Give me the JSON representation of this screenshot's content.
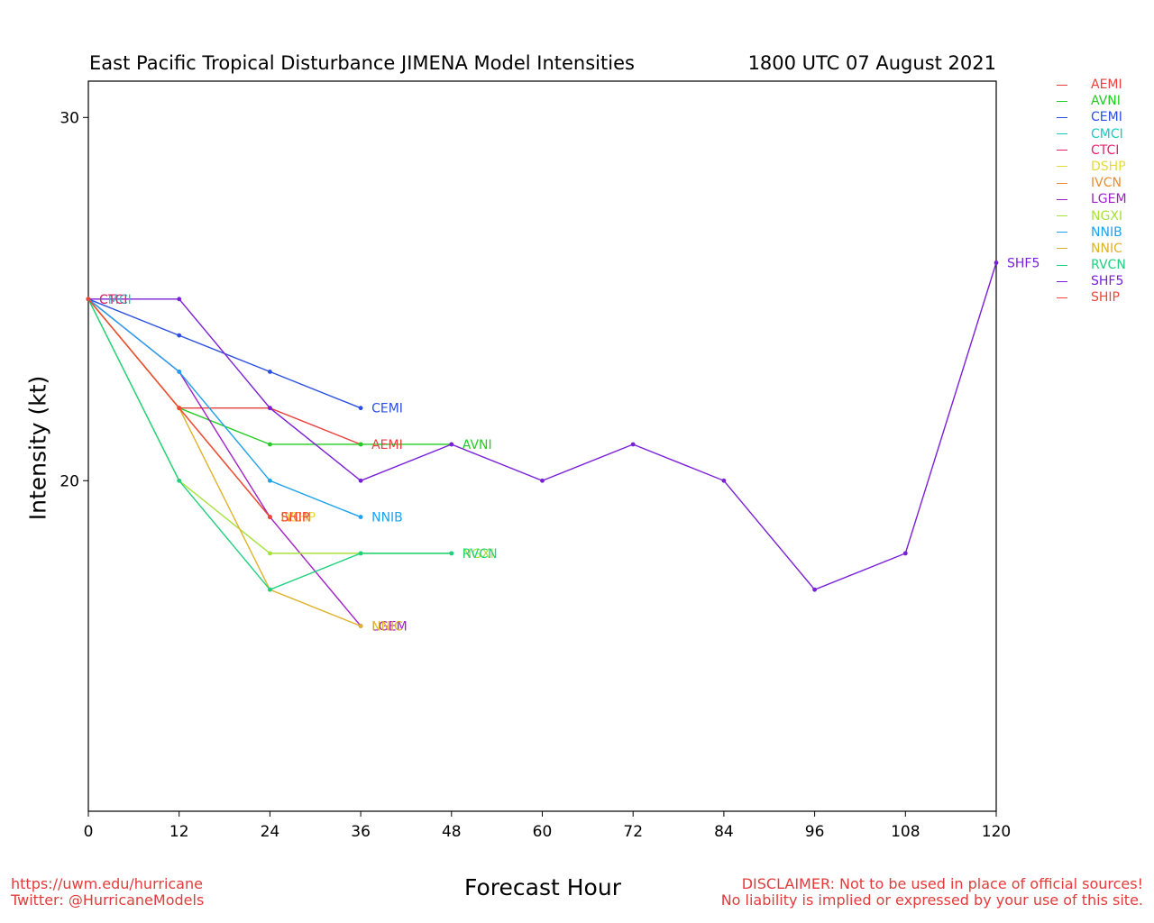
{
  "header": {
    "title": "East Pacific Tropical Disturbance JIMENA Model Intensities",
    "timestamp": "1800 UTC 07 August 2021"
  },
  "footer": {
    "url": "https://uwm.edu/hurricane",
    "twitter": "Twitter: @HurricaneModels",
    "disclaimer_1": "DISCLAIMER: Not to be used in place of official sources!",
    "disclaimer_2": "No liability is implied or expressed by your use of this site."
  },
  "chart_data": {
    "type": "line",
    "title": "East Pacific Tropical Disturbance JIMENA Model Intensities",
    "xlabel": "Forecast Hour",
    "ylabel": "Intensity (kt)",
    "xlim": [
      0,
      120
    ],
    "ylim": [
      10.9,
      31
    ],
    "xticks": [
      0,
      12,
      24,
      36,
      48,
      60,
      72,
      84,
      96,
      108,
      120
    ],
    "yticks": [
      20,
      30
    ],
    "grid": false,
    "legend_position": "right",
    "series": [
      {
        "name": "AEMI",
        "color": "#e8403c",
        "x": [
          0,
          12,
          24,
          36
        ],
        "y": [
          25,
          22,
          22,
          21
        ]
      },
      {
        "name": "AVNI",
        "color": "#22cc22",
        "x": [
          0,
          12,
          24,
          36,
          48
        ],
        "y": [
          25,
          22,
          21,
          21,
          21
        ]
      },
      {
        "name": "CEMI",
        "color": "#2a4fe0",
        "x": [
          0,
          12,
          24,
          36
        ],
        "y": [
          25,
          24,
          23,
          22
        ]
      },
      {
        "name": "CMCI",
        "color": "#19c9c0",
        "x": [
          0
        ],
        "y": [
          25
        ]
      },
      {
        "name": "CTCI",
        "color": "#e8206a",
        "x": [
          0
        ],
        "y": [
          25
        ]
      },
      {
        "name": "DSHP",
        "color": "#e6d93a",
        "x": [
          0,
          12,
          24
        ],
        "y": [
          25,
          22,
          19
        ]
      },
      {
        "name": "IVCN",
        "color": "#ee8a2a",
        "x": [
          0,
          12,
          24
        ],
        "y": [
          25,
          22,
          19
        ]
      },
      {
        "name": "LGEM",
        "color": "#a020c8",
        "x": [
          0,
          12,
          24,
          36
        ],
        "y": [
          25,
          23,
          19,
          16
        ]
      },
      {
        "name": "NGXI",
        "color": "#a6e23a",
        "x": [
          0,
          12,
          24,
          36,
          48
        ],
        "y": [
          25,
          20,
          18,
          18,
          18
        ]
      },
      {
        "name": "NNIB",
        "color": "#1fa2ec",
        "x": [
          0,
          12,
          24,
          36
        ],
        "y": [
          25,
          23,
          20,
          19
        ]
      },
      {
        "name": "NNIC",
        "color": "#deb22a",
        "x": [
          0,
          12,
          24,
          36
        ],
        "y": [
          25,
          22,
          17,
          16
        ]
      },
      {
        "name": "RVCN",
        "color": "#1fd17e",
        "x": [
          0,
          12,
          24,
          36,
          48
        ],
        "y": [
          25,
          20,
          17,
          18,
          18
        ]
      },
      {
        "name": "SHF5",
        "color": "#7a1fd8",
        "x": [
          0,
          12,
          24,
          36,
          48,
          60,
          72,
          84,
          96,
          108,
          120
        ],
        "y": [
          25,
          25,
          22,
          20,
          21,
          20,
          21,
          20,
          17,
          18,
          26
        ]
      },
      {
        "name": "SHIP",
        "color": "#f0463a",
        "x": [
          0,
          12,
          24
        ],
        "y": [
          25,
          22,
          19
        ]
      }
    ]
  }
}
